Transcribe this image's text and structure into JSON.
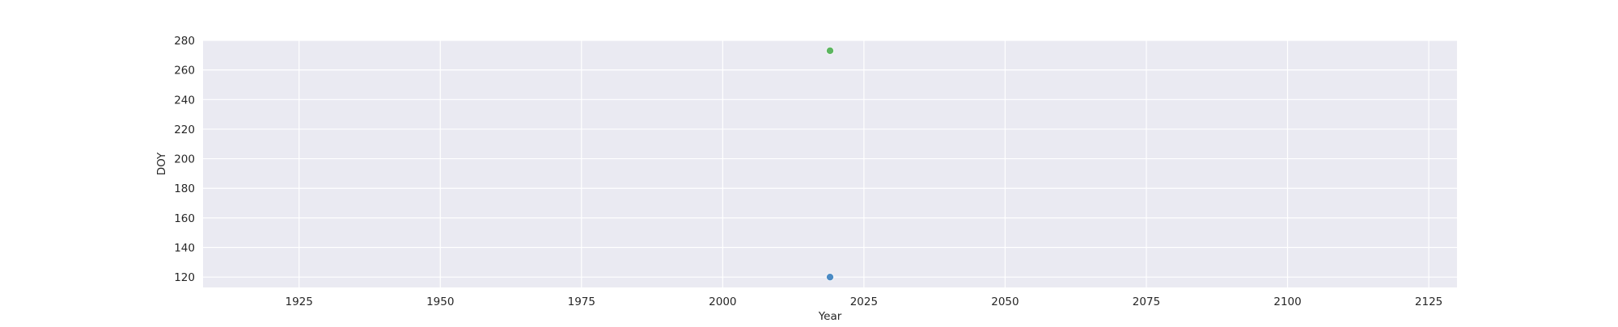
{
  "chart_data": {
    "type": "scatter",
    "title": "",
    "xlabel": "Year",
    "ylabel": "DOY",
    "xlim": [
      1908,
      2130
    ],
    "ylim": [
      113,
      280
    ],
    "xticks": [
      1925,
      1950,
      1975,
      2000,
      2025,
      2050,
      2075,
      2100,
      2125
    ],
    "yticks": [
      120,
      140,
      160,
      180,
      200,
      220,
      240,
      260,
      280
    ],
    "grid": true,
    "legend": "none",
    "points": [
      {
        "x": 2019,
        "y": 120,
        "color": "#3a7fbf"
      },
      {
        "x": 2019,
        "y": 273,
        "color": "#4caf50"
      }
    ],
    "colors": {
      "plot_background": "#eaeaf2",
      "grid": "#ffffff"
    }
  }
}
